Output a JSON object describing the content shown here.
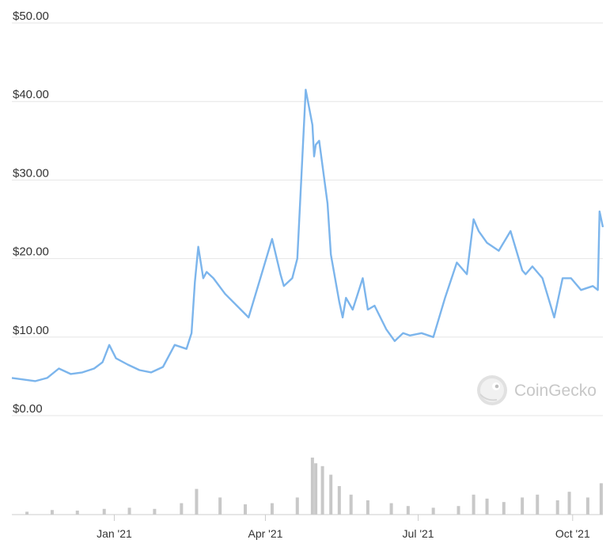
{
  "chart_data": {
    "type": "line",
    "x_axis": {
      "type": "date",
      "range": [
        "2020-11-01",
        "2021-10-19"
      ]
    },
    "ylim": [
      0,
      50
    ],
    "y_ticks": [
      {
        "value": 50,
        "label": "$50.00"
      },
      {
        "value": 40,
        "label": "$40.00"
      },
      {
        "value": 30,
        "label": "$30.00"
      },
      {
        "value": 20,
        "label": "$20.00"
      },
      {
        "value": 10,
        "label": "$10.00"
      },
      {
        "value": 0,
        "label": "$0.00"
      }
    ],
    "x_ticks": [
      {
        "date": "2021-01-01",
        "label": "Jan '21"
      },
      {
        "date": "2021-04-01",
        "label": "Apr '21"
      },
      {
        "date": "2021-07-01",
        "label": "Jul '21"
      },
      {
        "date": "2021-10-01",
        "label": "Oct '21"
      }
    ],
    "grid": true,
    "price_series": {
      "x": [
        "2020-11-01",
        "2020-11-08",
        "2020-11-15",
        "2020-11-22",
        "2020-11-29",
        "2020-12-06",
        "2020-12-13",
        "2020-12-20",
        "2020-12-25",
        "2020-12-29",
        "2021-01-02",
        "2021-01-09",
        "2021-01-16",
        "2021-01-23",
        "2021-01-30",
        "2021-02-06",
        "2021-02-13",
        "2021-02-16",
        "2021-02-18",
        "2021-02-20",
        "2021-02-23",
        "2021-02-25",
        "2021-03-01",
        "2021-03-08",
        "2021-03-15",
        "2021-03-22",
        "2021-03-29",
        "2021-04-05",
        "2021-04-10",
        "2021-04-12",
        "2021-04-17",
        "2021-04-20",
        "2021-04-25",
        "2021-04-29",
        "2021-04-30",
        "2021-05-01",
        "2021-05-03",
        "2021-05-08",
        "2021-05-10",
        "2021-05-15",
        "2021-05-17",
        "2021-05-19",
        "2021-05-23",
        "2021-05-29",
        "2021-06-01",
        "2021-06-05",
        "2021-06-12",
        "2021-06-17",
        "2021-06-22",
        "2021-06-26",
        "2021-07-03",
        "2021-07-10",
        "2021-07-17",
        "2021-07-24",
        "2021-07-30",
        "2021-08-03",
        "2021-08-06",
        "2021-08-11",
        "2021-08-18",
        "2021-08-25",
        "2021-09-01",
        "2021-09-03",
        "2021-09-07",
        "2021-09-13",
        "2021-09-20",
        "2021-09-25",
        "2021-09-30",
        "2021-10-06",
        "2021-10-13",
        "2021-10-16",
        "2021-10-17",
        "2021-10-18",
        "2021-10-19"
      ],
      "y": [
        4.8,
        4.6,
        4.4,
        4.8,
        6.0,
        5.3,
        5.5,
        6.0,
        6.8,
        9.0,
        7.3,
        6.5,
        5.8,
        5.5,
        6.2,
        9.0,
        8.5,
        10.5,
        17.0,
        21.5,
        17.5,
        18.3,
        17.5,
        15.5,
        14.0,
        12.5,
        17.5,
        22.5,
        18.0,
        16.5,
        17.5,
        20.0,
        41.5,
        37.0,
        33.0,
        34.5,
        35.0,
        27.0,
        20.5,
        14.5,
        12.5,
        15.0,
        13.5,
        17.5,
        13.5,
        14.0,
        11.0,
        9.5,
        10.5,
        10.2,
        10.5,
        10.0,
        15.0,
        19.5,
        18.0,
        25.0,
        23.5,
        22.0,
        21.0,
        23.5,
        18.5,
        18.0,
        19.0,
        17.5,
        12.5,
        17.5,
        17.5,
        16.0,
        16.5,
        16.0,
        26.0,
        25.0,
        24.0
      ]
    },
    "volume_bars": {
      "x": [
        "2020-11-10",
        "2020-11-25",
        "2020-12-10",
        "2020-12-26",
        "2021-01-10",
        "2021-01-25",
        "2021-02-10",
        "2021-02-19",
        "2021-03-05",
        "2021-03-20",
        "2021-04-05",
        "2021-04-20",
        "2021-04-29",
        "2021-05-01",
        "2021-05-05",
        "2021-05-10",
        "2021-05-15",
        "2021-05-22",
        "2021-06-01",
        "2021-06-15",
        "2021-06-25",
        "2021-07-10",
        "2021-07-25",
        "2021-08-03",
        "2021-08-11",
        "2021-08-21",
        "2021-09-01",
        "2021-09-10",
        "2021-09-22",
        "2021-09-29",
        "2021-10-10",
        "2021-10-18"
      ],
      "relative_height": [
        0.05,
        0.08,
        0.07,
        0.1,
        0.12,
        0.1,
        0.2,
        0.45,
        0.3,
        0.18,
        0.2,
        0.3,
        1.0,
        0.9,
        0.85,
        0.7,
        0.5,
        0.35,
        0.25,
        0.2,
        0.15,
        0.12,
        0.15,
        0.35,
        0.28,
        0.22,
        0.3,
        0.35,
        0.25,
        0.4,
        0.3,
        0.55
      ]
    },
    "line_color": "#7cb5ec",
    "volume_color": "#c8c8c8",
    "grid_color": "#e6e6e6"
  },
  "watermark": {
    "text": "CoinGecko",
    "icon": "gecko-logo-icon"
  }
}
